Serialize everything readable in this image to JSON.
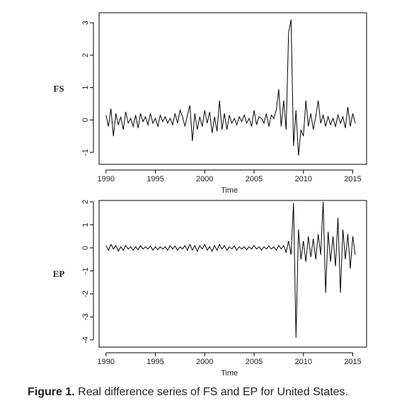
{
  "chart_data": [
    {
      "type": "line",
      "ylabel": "FS",
      "xlabel": "Time",
      "color": "#000000",
      "x": [
        1990,
        1990.25,
        1990.5,
        1990.75,
        1991,
        1991.25,
        1991.5,
        1991.75,
        1992,
        1992.25,
        1992.5,
        1992.75,
        1993,
        1993.25,
        1993.5,
        1993.75,
        1994,
        1994.25,
        1994.5,
        1994.75,
        1995,
        1995.25,
        1995.5,
        1995.75,
        1996,
        1996.25,
        1996.5,
        1996.75,
        1997,
        1997.25,
        1997.5,
        1997.75,
        1998,
        1998.25,
        1998.5,
        1998.75,
        1999,
        1999.25,
        1999.5,
        1999.75,
        2000,
        2000.25,
        2000.5,
        2000.75,
        2001,
        2001.25,
        2001.5,
        2001.75,
        2002,
        2002.25,
        2002.5,
        2002.75,
        2003,
        2003.25,
        2003.5,
        2003.75,
        2004,
        2004.25,
        2004.5,
        2004.75,
        2005,
        2005.25,
        2005.5,
        2005.75,
        2006,
        2006.25,
        2006.5,
        2006.75,
        2007,
        2007.25,
        2007.5,
        2007.75,
        2008,
        2008.25,
        2008.5,
        2008.75,
        2009,
        2009.25,
        2009.5,
        2009.75,
        2010,
        2010.25,
        2010.5,
        2010.75,
        2011,
        2011.25,
        2011.5,
        2011.75,
        2012,
        2012.25,
        2012.5,
        2012.75,
        2013,
        2013.25,
        2013.5,
        2013.75,
        2014,
        2014.25,
        2014.5,
        2014.75,
        2015,
        2015.25
      ],
      "values": [
        0.15,
        -0.2,
        0.35,
        -0.5,
        0.2,
        -0.15,
        0.1,
        -0.3,
        0.25,
        -0.1,
        0.05,
        -0.2,
        0.15,
        -0.25,
        0.2,
        -0.05,
        0.1,
        -0.15,
        0.2,
        -0.1,
        0.05,
        -0.2,
        0.15,
        -0.05,
        0.1,
        -0.1,
        0.05,
        -0.15,
        0.2,
        -0.1,
        0.3,
        0.1,
        -0.2,
        0.15,
        0.45,
        -0.65,
        0.2,
        -0.3,
        0.1,
        -0.2,
        0.3,
        -0.1,
        0.25,
        -0.4,
        0.1,
        -0.35,
        0.6,
        -0.3,
        0.2,
        -0.3,
        0.15,
        -0.1,
        0.05,
        -0.15,
        0.1,
        -0.05,
        0.15,
        -0.1,
        0.05,
        -0.2,
        0.3,
        -0.15,
        0.1,
        0.05,
        -0.1,
        0.2,
        -0.2,
        0.15,
        0.05,
        0.3,
        0.95,
        -0.2,
        0.6,
        -0.3,
        2.7,
        3.1,
        -0.8,
        0.3,
        -1.1,
        -0.3,
        -0.5,
        0.6,
        -0.2,
        0.2,
        -0.3,
        0.1,
        0.6,
        -0.1,
        0.15,
        -0.2,
        0.1,
        -0.15,
        0.05,
        -0.2,
        0.15,
        -0.1,
        0.1,
        -0.25,
        0.4,
        -0.2,
        0.2,
        -0.1
      ],
      "xlim": [
        1989.3,
        2016.4
      ],
      "ylim": [
        -1.37,
        3.31
      ],
      "xticks": [
        1990,
        1995,
        2000,
        2005,
        2010,
        2015
      ],
      "yticks": [
        -1,
        0,
        1,
        2,
        3
      ]
    },
    {
      "type": "line",
      "ylabel": "EP",
      "xlabel": "Time",
      "color": "#000000",
      "x": [
        1990,
        1990.25,
        1990.5,
        1990.75,
        1991,
        1991.25,
        1991.5,
        1991.75,
        1992,
        1992.25,
        1992.5,
        1992.75,
        1993,
        1993.25,
        1993.5,
        1993.75,
        1994,
        1994.25,
        1994.5,
        1994.75,
        1995,
        1995.25,
        1995.5,
        1995.75,
        1996,
        1996.25,
        1996.5,
        1996.75,
        1997,
        1997.25,
        1997.5,
        1997.75,
        1998,
        1998.25,
        1998.5,
        1998.75,
        1999,
        1999.25,
        1999.5,
        1999.75,
        2000,
        2000.25,
        2000.5,
        2000.75,
        2001,
        2001.25,
        2001.5,
        2001.75,
        2002,
        2002.25,
        2002.5,
        2002.75,
        2003,
        2003.25,
        2003.5,
        2003.75,
        2004,
        2004.25,
        2004.5,
        2004.75,
        2005,
        2005.25,
        2005.5,
        2005.75,
        2006,
        2006.25,
        2006.5,
        2006.75,
        2007,
        2007.25,
        2007.5,
        2007.75,
        2008,
        2008.25,
        2008.5,
        2008.75,
        2009,
        2009.25,
        2009.5,
        2009.75,
        2010,
        2010.25,
        2010.5,
        2010.75,
        2011,
        2011.25,
        2011.5,
        2011.75,
        2012,
        2012.25,
        2012.5,
        2012.75,
        2013,
        2013.25,
        2013.5,
        2013.75,
        2014,
        2014.25,
        2014.5,
        2014.75,
        2015,
        2015.25
      ],
      "values": [
        0.1,
        -0.1,
        0.15,
        -0.05,
        0.1,
        -0.15,
        0.05,
        -0.1,
        0.1,
        -0.05,
        0.05,
        -0.1,
        0.05,
        -0.08,
        0.1,
        -0.05,
        0.05,
        -0.05,
        0.08,
        -0.1,
        0.05,
        -0.08,
        0.05,
        -0.05,
        0.05,
        -0.1,
        0.1,
        -0.05,
        0.08,
        -0.1,
        0.05,
        -0.05,
        0.1,
        -0.1,
        0.15,
        -0.1,
        0.1,
        -0.15,
        0.1,
        -0.05,
        0.15,
        -0.1,
        0.05,
        -0.15,
        0.1,
        -0.1,
        0.15,
        -0.05,
        0.1,
        -0.1,
        0.05,
        -0.05,
        0.08,
        -0.1,
        0.05,
        -0.05,
        0.05,
        -0.08,
        0.05,
        -0.05,
        0.1,
        -0.05,
        0.05,
        -0.1,
        0.05,
        -0.05,
        0.08,
        -0.05,
        0.05,
        -0.1,
        0.1,
        -0.05,
        0.1,
        -0.2,
        0.3,
        -0.3,
        1.95,
        -3.9,
        0.8,
        -0.5,
        0.3,
        -0.6,
        0.5,
        -0.4,
        0.4,
        -0.5,
        0.6,
        -0.3,
        2.0,
        -1.95,
        0.7,
        -0.6,
        0.5,
        -0.8,
        1.3,
        -1.95,
        0.8,
        -0.5,
        0.6,
        -0.9,
        0.5,
        -0.3
      ],
      "xlim": [
        1989.3,
        2016.4
      ],
      "ylim": [
        -4.31,
        2.06
      ],
      "xticks": [
        1990,
        1995,
        2000,
        2005,
        2010,
        2015
      ],
      "yticks": [
        -4,
        -3,
        -2,
        -1,
        0,
        1,
        2
      ]
    }
  ],
  "caption": {
    "label": "Figure 1.",
    "text": "Real difference series of FS and EP for United States."
  }
}
